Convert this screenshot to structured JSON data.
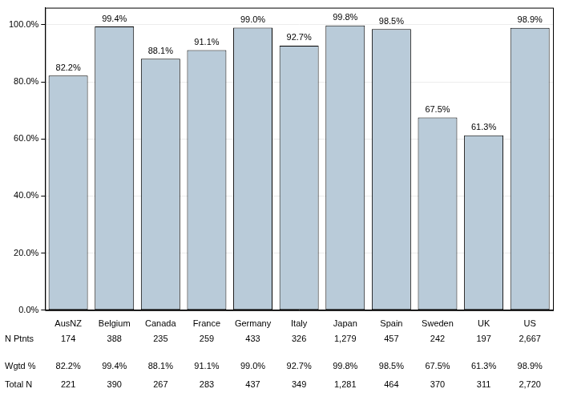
{
  "chart_data": {
    "type": "bar",
    "categories": [
      "AusNZ",
      "Belgium",
      "Canada",
      "France",
      "Germany",
      "Italy",
      "Japan",
      "Spain",
      "Sweden",
      "UK",
      "US"
    ],
    "values": [
      82.2,
      99.4,
      88.1,
      91.1,
      99.0,
      92.7,
      99.8,
      98.5,
      67.5,
      61.3,
      98.9
    ],
    "value_labels": [
      "82.2%",
      "99.4%",
      "88.1%",
      "91.1%",
      "99.0%",
      "92.7%",
      "99.8%",
      "98.5%",
      "67.5%",
      "61.3%",
      "98.9%"
    ],
    "data_labels": true,
    "color": "#b9cbd9",
    "ylim": [
      0,
      106
    ],
    "yticks": [
      {
        "value": 0,
        "label": "0.0%"
      },
      {
        "value": 20,
        "label": "20.0%"
      },
      {
        "value": 40,
        "label": "40.0%"
      },
      {
        "value": 60,
        "label": "60.0%"
      },
      {
        "value": 80,
        "label": "80.0%"
      },
      {
        "value": 100,
        "label": "100.0%"
      }
    ],
    "grid": true
  },
  "table": {
    "rows": [
      {
        "label": "N Ptnts",
        "values": [
          "174",
          "388",
          "235",
          "259",
          "433",
          "326",
          "1,279",
          "457",
          "242",
          "197",
          "2,667"
        ]
      },
      {
        "label": "Wgtd %",
        "values": [
          "82.2%",
          "99.4%",
          "88.1%",
          "91.1%",
          "99.0%",
          "92.7%",
          "99.8%",
          "98.5%",
          "67.5%",
          "61.3%",
          "98.9%"
        ]
      },
      {
        "label": "Total N",
        "values": [
          "221",
          "390",
          "267",
          "283",
          "437",
          "349",
          "1,281",
          "464",
          "370",
          "311",
          "2,720"
        ]
      }
    ]
  }
}
